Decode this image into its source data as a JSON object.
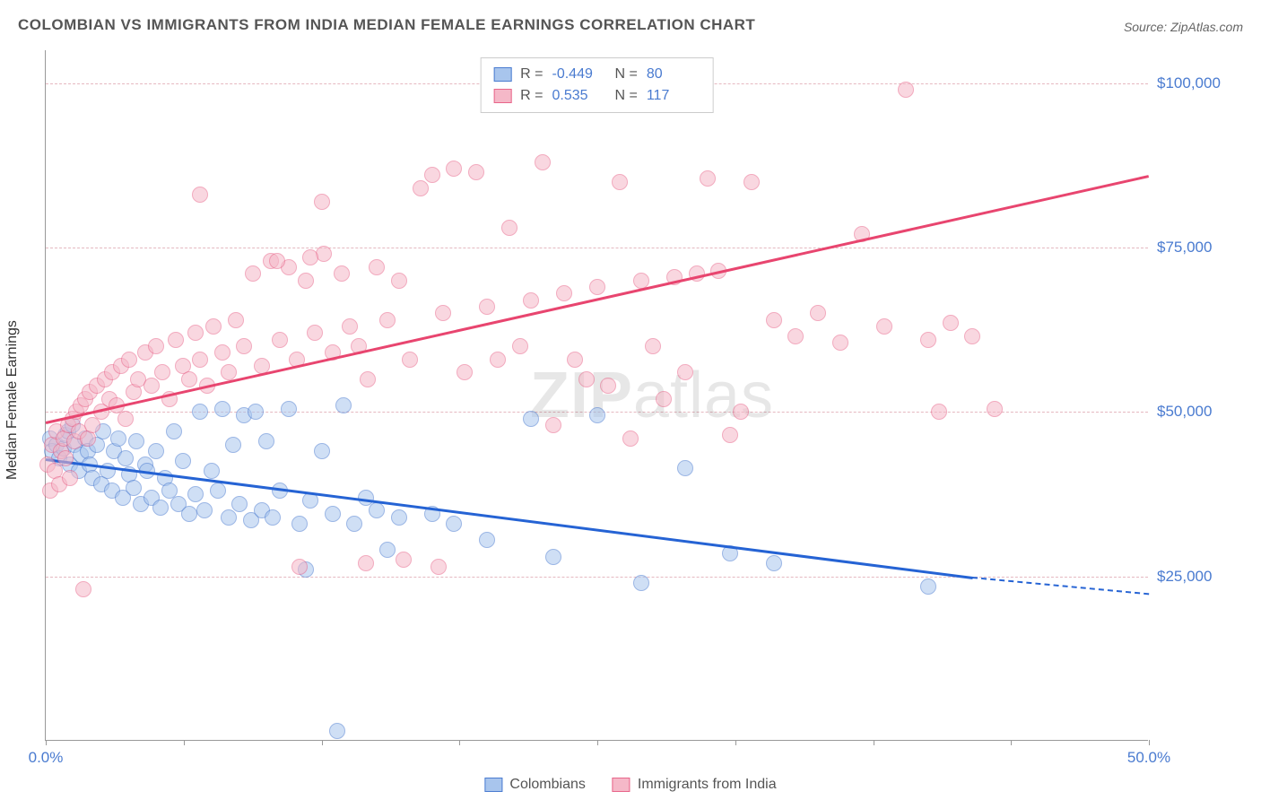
{
  "title": "COLOMBIAN VS IMMIGRANTS FROM INDIA MEDIAN FEMALE EARNINGS CORRELATION CHART",
  "source": "Source: ZipAtlas.com",
  "ylabel": "Median Female Earnings",
  "watermark_bold": "ZIP",
  "watermark_rest": "atlas",
  "chart": {
    "type": "scatter",
    "xlim": [
      0,
      50
    ],
    "ylim": [
      0,
      105000
    ],
    "x_ticks": [
      0,
      6.25,
      12.5,
      18.75,
      25,
      31.25,
      37.5,
      43.75,
      50
    ],
    "x_tick_labels": {
      "0": "0.0%",
      "50": "50.0%"
    },
    "y_gridlines": [
      25000,
      50000,
      75000,
      100000
    ],
    "y_tick_labels": {
      "25000": "$25,000",
      "50000": "$50,000",
      "75000": "$75,000",
      "100000": "$100,000"
    },
    "grid_color": "#e5b8c0",
    "axis_color": "#999999",
    "background_color": "#ffffff",
    "label_color": "#4a7bd0",
    "point_radius": 9,
    "point_opacity": 0.55
  },
  "series": [
    {
      "name": "Colombians",
      "fill_color": "#a8c5ed",
      "stroke_color": "#4a7bd0",
      "line_color": "#2563d4",
      "R": "-0.449",
      "N": "80",
      "trend": {
        "x1": 0,
        "y1": 43000,
        "x2": 42,
        "y2": 25000,
        "dash_to_x": 50,
        "dash_to_y": 22500
      },
      "points": [
        [
          0.2,
          46000
        ],
        [
          0.3,
          44000
        ],
        [
          0.5,
          45000
        ],
        [
          0.6,
          43000
        ],
        [
          0.8,
          44500
        ],
        [
          0.9,
          46500
        ],
        [
          1.0,
          47000
        ],
        [
          1.1,
          42000
        ],
        [
          1.2,
          48000
        ],
        [
          1.3,
          45000
        ],
        [
          1.5,
          41000
        ],
        [
          1.6,
          43500
        ],
        [
          1.8,
          46000
        ],
        [
          1.9,
          44000
        ],
        [
          2.0,
          42000
        ],
        [
          2.1,
          40000
        ],
        [
          2.3,
          45000
        ],
        [
          2.5,
          39000
        ],
        [
          2.6,
          47000
        ],
        [
          2.8,
          41000
        ],
        [
          3.0,
          38000
        ],
        [
          3.1,
          44000
        ],
        [
          3.3,
          46000
        ],
        [
          3.5,
          37000
        ],
        [
          3.6,
          43000
        ],
        [
          3.8,
          40500
        ],
        [
          4.0,
          38500
        ],
        [
          4.1,
          45500
        ],
        [
          4.3,
          36000
        ],
        [
          4.5,
          42000
        ],
        [
          4.6,
          41000
        ],
        [
          4.8,
          37000
        ],
        [
          5.0,
          44000
        ],
        [
          5.2,
          35500
        ],
        [
          5.4,
          40000
        ],
        [
          5.6,
          38000
        ],
        [
          5.8,
          47000
        ],
        [
          6.0,
          36000
        ],
        [
          6.2,
          42500
        ],
        [
          6.5,
          34500
        ],
        [
          6.8,
          37500
        ],
        [
          7.0,
          50000
        ],
        [
          7.2,
          35000
        ],
        [
          7.5,
          41000
        ],
        [
          7.8,
          38000
        ],
        [
          8.0,
          50500
        ],
        [
          8.3,
          34000
        ],
        [
          8.5,
          45000
        ],
        [
          8.8,
          36000
        ],
        [
          9.0,
          49500
        ],
        [
          9.3,
          33500
        ],
        [
          9.5,
          50000
        ],
        [
          9.8,
          35000
        ],
        [
          10.0,
          45500
        ],
        [
          10.3,
          34000
        ],
        [
          10.6,
          38000
        ],
        [
          11.0,
          50500
        ],
        [
          11.5,
          33000
        ],
        [
          12.0,
          36500
        ],
        [
          12.5,
          44000
        ],
        [
          13.0,
          34500
        ],
        [
          13.5,
          51000
        ],
        [
          14.0,
          33000
        ],
        [
          14.5,
          37000
        ],
        [
          15.0,
          35000
        ],
        [
          15.5,
          29000
        ],
        [
          16.0,
          34000
        ],
        [
          11.8,
          26000
        ],
        [
          13.2,
          1500
        ],
        [
          17.5,
          34500
        ],
        [
          18.5,
          33000
        ],
        [
          20.0,
          30500
        ],
        [
          22.0,
          49000
        ],
        [
          23.0,
          28000
        ],
        [
          25.0,
          49500
        ],
        [
          27.0,
          24000
        ],
        [
          29.0,
          41500
        ],
        [
          31.0,
          28500
        ],
        [
          33.0,
          27000
        ],
        [
          40.0,
          23500
        ]
      ]
    },
    {
      "name": "Immigrants from India",
      "fill_color": "#f5b8c8",
      "stroke_color": "#e8658a",
      "line_color": "#e8456f",
      "R": "0.535",
      "N": "117",
      "trend": {
        "x1": 0,
        "y1": 48500,
        "x2": 50,
        "y2": 86000
      },
      "points": [
        [
          0.1,
          42000
        ],
        [
          0.2,
          38000
        ],
        [
          0.3,
          45000
        ],
        [
          0.4,
          41000
        ],
        [
          0.5,
          47000
        ],
        [
          0.6,
          39000
        ],
        [
          0.7,
          44000
        ],
        [
          0.8,
          46000
        ],
        [
          0.9,
          43000
        ],
        [
          1.0,
          48000
        ],
        [
          1.1,
          40000
        ],
        [
          1.2,
          49000
        ],
        [
          1.3,
          45500
        ],
        [
          1.4,
          50000
        ],
        [
          1.5,
          47000
        ],
        [
          1.6,
          51000
        ],
        [
          1.7,
          23000
        ],
        [
          1.8,
          52000
        ],
        [
          1.9,
          46000
        ],
        [
          2.0,
          53000
        ],
        [
          2.1,
          48000
        ],
        [
          2.3,
          54000
        ],
        [
          2.5,
          50000
        ],
        [
          2.7,
          55000
        ],
        [
          2.9,
          52000
        ],
        [
          3.0,
          56000
        ],
        [
          3.2,
          51000
        ],
        [
          3.4,
          57000
        ],
        [
          3.6,
          49000
        ],
        [
          3.8,
          58000
        ],
        [
          4.0,
          53000
        ],
        [
          4.2,
          55000
        ],
        [
          4.5,
          59000
        ],
        [
          4.8,
          54000
        ],
        [
          5.0,
          60000
        ],
        [
          5.3,
          56000
        ],
        [
          5.6,
          52000
        ],
        [
          5.9,
          61000
        ],
        [
          6.2,
          57000
        ],
        [
          6.5,
          55000
        ],
        [
          6.8,
          62000
        ],
        [
          7.0,
          58000
        ],
        [
          7.3,
          54000
        ],
        [
          7.6,
          63000
        ],
        [
          8.0,
          59000
        ],
        [
          8.3,
          56000
        ],
        [
          8.6,
          64000
        ],
        [
          9.0,
          60000
        ],
        [
          9.4,
          71000
        ],
        [
          9.8,
          57000
        ],
        [
          10.2,
          73000
        ],
        [
          10.6,
          61000
        ],
        [
          11.0,
          72000
        ],
        [
          11.4,
          58000
        ],
        [
          11.8,
          70000
        ],
        [
          12.2,
          62000
        ],
        [
          12.6,
          74000
        ],
        [
          13.0,
          59000
        ],
        [
          13.4,
          71000
        ],
        [
          13.8,
          63000
        ],
        [
          7.0,
          83000
        ],
        [
          10.5,
          73000
        ],
        [
          12.0,
          73500
        ],
        [
          12.5,
          82000
        ],
        [
          14.2,
          60000
        ],
        [
          14.6,
          55000
        ],
        [
          15.0,
          72000
        ],
        [
          15.5,
          64000
        ],
        [
          16.0,
          70000
        ],
        [
          16.5,
          58000
        ],
        [
          17.0,
          84000
        ],
        [
          17.5,
          86000
        ],
        [
          18.0,
          65000
        ],
        [
          18.5,
          87000
        ],
        [
          19.0,
          56000
        ],
        [
          19.5,
          86500
        ],
        [
          20.0,
          66000
        ],
        [
          20.5,
          58000
        ],
        [
          21.0,
          78000
        ],
        [
          21.5,
          60000
        ],
        [
          22.0,
          67000
        ],
        [
          22.5,
          88000
        ],
        [
          23.0,
          48000
        ],
        [
          23.5,
          68000
        ],
        [
          24.0,
          58000
        ],
        [
          24.5,
          55000
        ],
        [
          25.0,
          69000
        ],
        [
          25.5,
          54000
        ],
        [
          26.0,
          85000
        ],
        [
          26.5,
          46000
        ],
        [
          27.0,
          70000
        ],
        [
          27.5,
          60000
        ],
        [
          28.0,
          52000
        ],
        [
          28.5,
          70500
        ],
        [
          29.0,
          56000
        ],
        [
          29.5,
          71000
        ],
        [
          30.0,
          85500
        ],
        [
          30.5,
          71500
        ],
        [
          31.0,
          46500
        ],
        [
          31.5,
          50000
        ],
        [
          32.0,
          85000
        ],
        [
          33.0,
          64000
        ],
        [
          34.0,
          61500
        ],
        [
          35.0,
          65000
        ],
        [
          36.0,
          60500
        ],
        [
          37.0,
          77000
        ],
        [
          38.0,
          63000
        ],
        [
          39.0,
          99000
        ],
        [
          40.0,
          61000
        ],
        [
          40.5,
          50000
        ],
        [
          41.0,
          63500
        ],
        [
          42.0,
          61500
        ],
        [
          43.0,
          50500
        ],
        [
          11.5,
          26500
        ],
        [
          14.5,
          27000
        ],
        [
          16.2,
          27500
        ],
        [
          17.8,
          26500
        ]
      ]
    }
  ],
  "bottom_legend": [
    {
      "label": "Colombians",
      "fill": "#a8c5ed",
      "stroke": "#4a7bd0"
    },
    {
      "label": "Immigrants from India",
      "fill": "#f5b8c8",
      "stroke": "#e8658a"
    }
  ]
}
